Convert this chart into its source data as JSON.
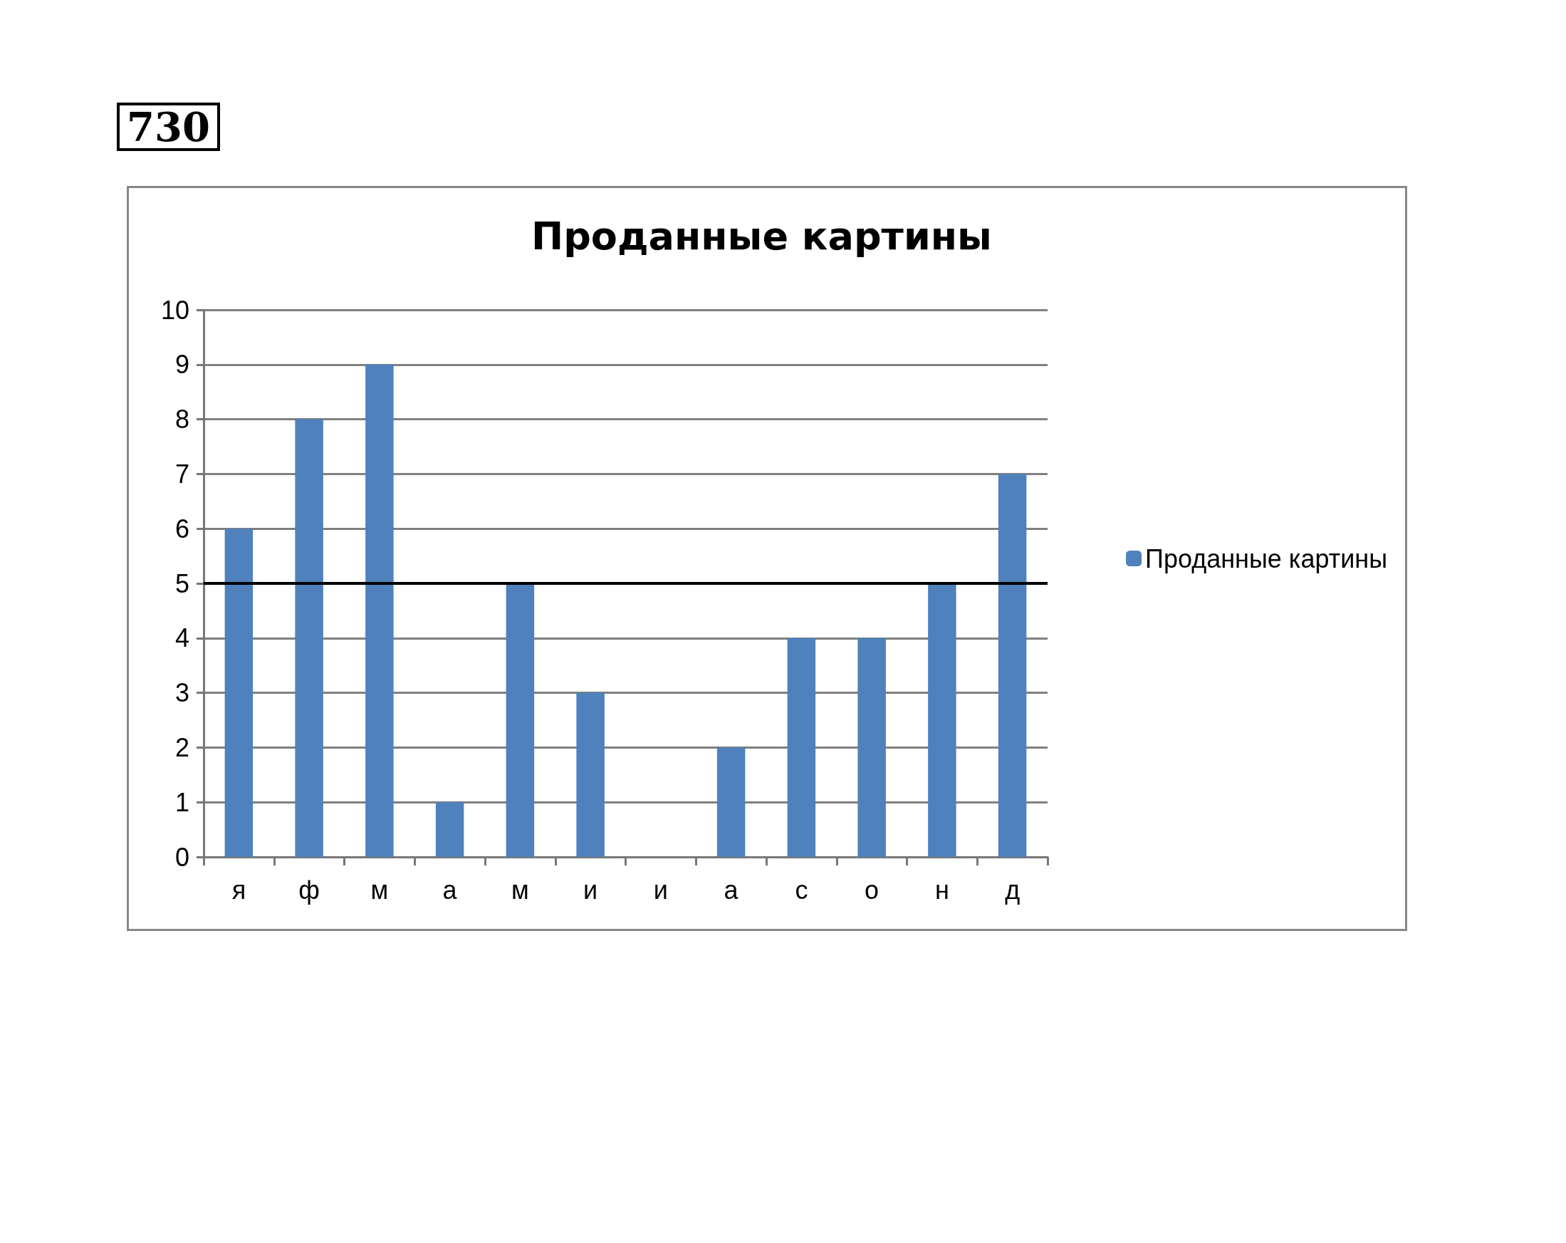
{
  "chart_data": {
    "type": "bar",
    "title": "Проданные картины",
    "categories": [
      "я",
      "ф",
      "м",
      "а",
      "м",
      "и",
      "и",
      "а",
      "с",
      "о",
      "н",
      "д"
    ],
    "series": [
      {
        "name": "Проданные картины",
        "color": "#4f81bd",
        "values": [
          6,
          8,
          9,
          1,
          5,
          3,
          0,
          2,
          4,
          4,
          5,
          7
        ]
      }
    ],
    "ylim": [
      0,
      10
    ],
    "yticks": [
      0,
      1,
      2,
      3,
      4,
      5,
      6,
      7,
      8,
      9,
      10
    ],
    "grid": "y",
    "legend": "right",
    "ref_lines": [
      {
        "axis": "y",
        "value": 5,
        "color": "#000000"
      }
    ],
    "annotations": [
      "730"
    ]
  }
}
